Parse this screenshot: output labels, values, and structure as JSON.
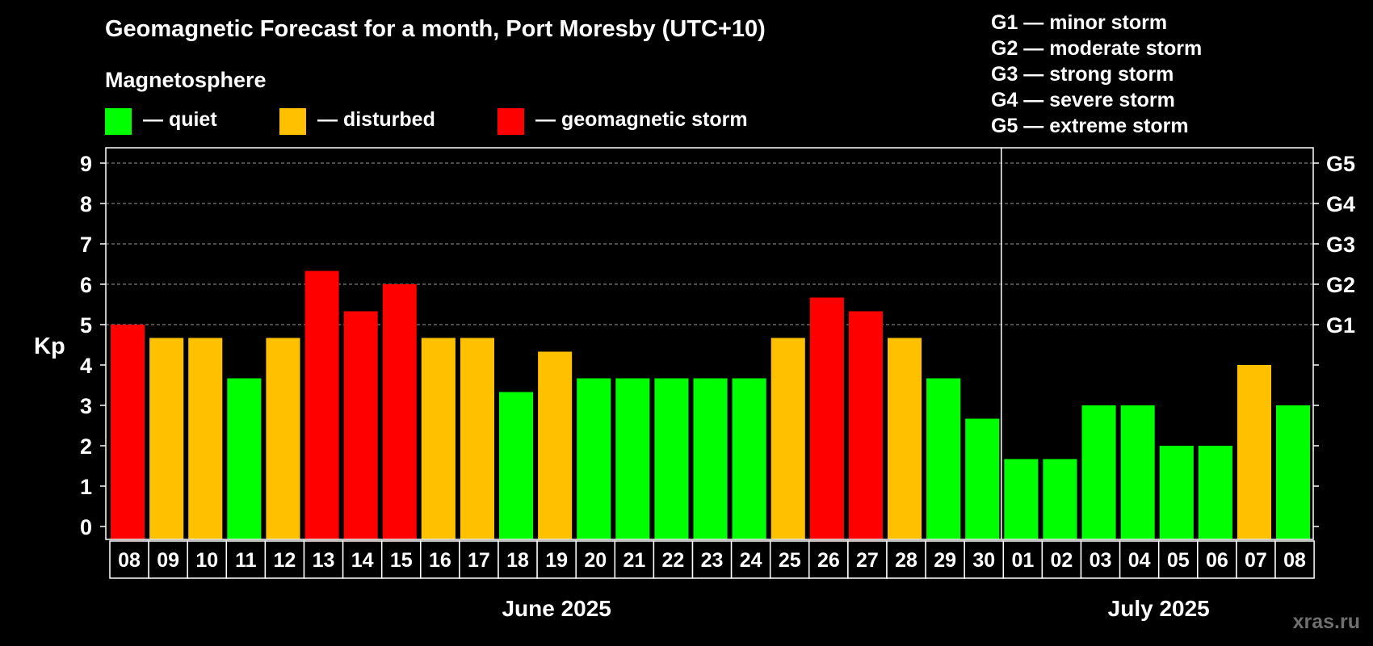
{
  "title": "Geomagnetic Forecast for a month, Port Moresby (UTC+10)",
  "magnetosphere_label": "Magnetosphere",
  "legend": [
    {
      "label": "— quiet",
      "color": "#00ff00"
    },
    {
      "label": "— disturbed",
      "color": "#ffc000"
    },
    {
      "label": "— geomagnetic storm",
      "color": "#ff0000"
    }
  ],
  "storm_levels": [
    "G1 — minor storm",
    "G2 — moderate storm",
    "G3 — strong storm",
    "G4 — severe storm",
    "G5 — extreme storm"
  ],
  "watermark": "xras.ru",
  "colors": {
    "quiet": "#00ff00",
    "disturbed": "#ffc000",
    "storm": "#ff0000",
    "background": "#000000",
    "grid": "#9a9a9a"
  },
  "chart_data": {
    "type": "bar",
    "ylabel": "Kp",
    "ylim": [
      0,
      9
    ],
    "y_ticks": [
      0,
      1,
      2,
      3,
      4,
      5,
      6,
      7,
      8,
      9
    ],
    "right_axis_labels": [
      {
        "kp": 5,
        "label": "G1"
      },
      {
        "kp": 6,
        "label": "G2"
      },
      {
        "kp": 7,
        "label": "G3"
      },
      {
        "kp": 8,
        "label": "G4"
      },
      {
        "kp": 9,
        "label": "G5"
      }
    ],
    "grid_lines_kp": [
      5,
      6,
      7,
      8,
      9
    ],
    "months": [
      {
        "label": "June 2025",
        "count": 23
      },
      {
        "label": "July 2025",
        "count": 8
      }
    ],
    "categories": [
      "08",
      "09",
      "10",
      "11",
      "12",
      "13",
      "14",
      "15",
      "16",
      "17",
      "18",
      "19",
      "20",
      "21",
      "22",
      "23",
      "24",
      "25",
      "26",
      "27",
      "28",
      "29",
      "30",
      "01",
      "02",
      "03",
      "04",
      "05",
      "06",
      "07",
      "08"
    ],
    "values": [
      5.0,
      4.67,
      4.67,
      3.67,
      4.67,
      6.33,
      5.33,
      6.0,
      4.67,
      4.67,
      3.33,
      4.33,
      3.67,
      3.67,
      3.67,
      3.67,
      3.67,
      4.67,
      5.67,
      5.33,
      4.67,
      3.67,
      2.67,
      1.67,
      1.67,
      3.0,
      3.0,
      2.0,
      2.0,
      4.0,
      3.0
    ],
    "status": [
      "storm",
      "disturbed",
      "disturbed",
      "quiet",
      "disturbed",
      "storm",
      "storm",
      "storm",
      "disturbed",
      "disturbed",
      "quiet",
      "disturbed",
      "quiet",
      "quiet",
      "quiet",
      "quiet",
      "quiet",
      "disturbed",
      "storm",
      "storm",
      "disturbed",
      "quiet",
      "quiet",
      "quiet",
      "quiet",
      "quiet",
      "quiet",
      "quiet",
      "quiet",
      "disturbed",
      "quiet"
    ]
  }
}
